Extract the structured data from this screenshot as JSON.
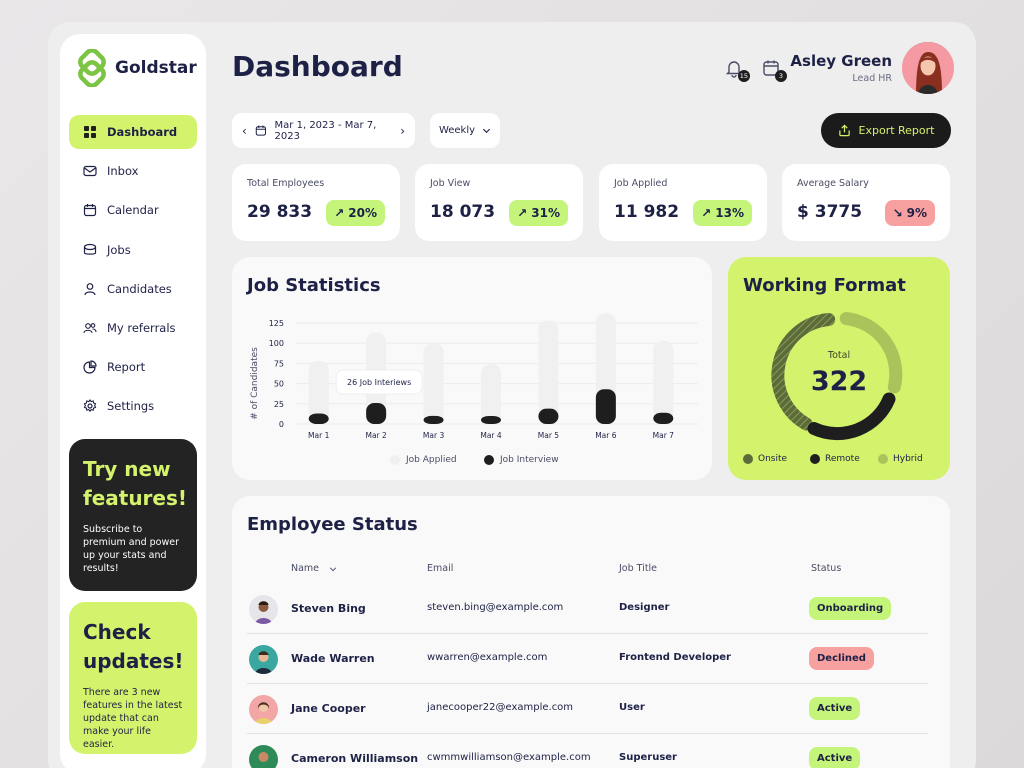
{
  "brand": {
    "name": "Goldstar",
    "color": "#7cc444"
  },
  "sidebar": {
    "items": [
      {
        "label": "Dashboard",
        "icon": "grid-icon",
        "active": true
      },
      {
        "label": "Inbox",
        "icon": "mail-icon"
      },
      {
        "label": "Calendar",
        "icon": "calendar-icon"
      },
      {
        "label": "Jobs",
        "icon": "briefcase-icon"
      },
      {
        "label": "Candidates",
        "icon": "user-icon"
      },
      {
        "label": "My referrals",
        "icon": "users-icon"
      },
      {
        "label": "Report",
        "icon": "pie-chart-icon"
      },
      {
        "label": "Settings",
        "icon": "gear-icon"
      }
    ],
    "promo_dark": {
      "title_line1": "Try new",
      "title_line2": "features!",
      "text": "Subscribe to premium and power up your stats and results!"
    },
    "promo_light": {
      "title_line1": "Check",
      "title_line2": "updates!",
      "text": "There are 3 new features in the latest update that can make your life easier."
    }
  },
  "header": {
    "title": "Dashboard",
    "notifications_count": "15",
    "calendar_count": "3",
    "user_name": "Asley Green",
    "user_role": "Lead HR"
  },
  "toolbar": {
    "date_range": "Mar 1, 2023 - Mar 7, 2023",
    "period": "Weekly",
    "export_label": "Export Report"
  },
  "stats": [
    {
      "label": "Total Employees",
      "value": "29 833",
      "change": "20%",
      "trend": "up"
    },
    {
      "label": "Job View",
      "value": "18 073",
      "change": "31%",
      "trend": "up"
    },
    {
      "label": "Job Applied",
      "value": "11 982",
      "change": "13%",
      "trend": "up"
    },
    {
      "label": "Average Salary",
      "value": "$ 3775",
      "change": "9%",
      "trend": "down"
    }
  ],
  "job_statistics": {
    "title": "Job Statistics",
    "tooltip": "26 Job Interiews",
    "legend_applied": "Job Applied",
    "legend_interview": "Job Interview"
  },
  "chart_data": {
    "type": "bar",
    "title": "Job Statistics",
    "ylabel": "# of Candidates",
    "xlabel": "",
    "ylim": [
      0,
      125
    ],
    "yticks": [
      0,
      25,
      50,
      75,
      100,
      125
    ],
    "categories": [
      "Mar 1",
      "Mar 2",
      "Mar 3",
      "Mar 4",
      "Mar 5",
      "Mar 6",
      "Mar 7"
    ],
    "series": [
      {
        "name": "Job Applied",
        "color": "#f0f0f0",
        "values": [
          78,
          113,
          100,
          74,
          128,
          137,
          103
        ]
      },
      {
        "name": "Job Interview",
        "color": "#1e1e1e",
        "values": [
          13,
          26,
          10,
          7,
          19,
          43,
          14
        ]
      }
    ],
    "grid": true,
    "legend": "bottom"
  },
  "working_format": {
    "title": "Working Format",
    "total_label": "Total",
    "total_value": "322",
    "legend": [
      {
        "label": "Onsite",
        "color": "#5c6b3a"
      },
      {
        "label": "Remote",
        "color": "#1e1e1e"
      },
      {
        "label": "Hybrid",
        "color": "#a8c45a"
      }
    ]
  },
  "employee_status": {
    "title": "Employee Status",
    "columns": {
      "name": "Name",
      "email": "Email",
      "job_title": "Job Title",
      "status": "Status"
    },
    "rows": [
      {
        "name": "Steven Bing",
        "email": "steven.bing@example.com",
        "job_title": "Designer",
        "status": "Onboarding",
        "status_color": "green"
      },
      {
        "name": "Wade Warren",
        "email": "wwarren@example.com",
        "job_title": "Frontend Developer",
        "status": "Declined",
        "status_color": "red"
      },
      {
        "name": "Jane Cooper",
        "email": "janecooper22@example.com",
        "job_title": "User",
        "status": "Active",
        "status_color": "green"
      },
      {
        "name": "Cameron Williamson",
        "email": "cwmmwilliamson@example.com",
        "job_title": "Superuser",
        "status": "Active",
        "status_color": "green"
      }
    ]
  }
}
